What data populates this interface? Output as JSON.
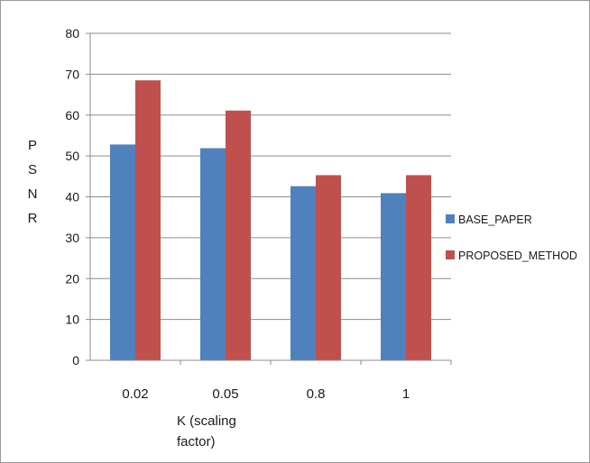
{
  "chart_data": {
    "type": "bar",
    "title": "",
    "xlabel": "K (scaling factor)",
    "xlabel_lines": [
      "K (scaling",
      "factor)"
    ],
    "ylabel": "PSNR",
    "ylabel_chars": [
      "P",
      "S",
      "N",
      "R"
    ],
    "ylim": [
      0,
      80
    ],
    "yticks": [
      0,
      10,
      20,
      30,
      40,
      50,
      60,
      70,
      80
    ],
    "grid": true,
    "legend_position": "right",
    "categories": [
      "0.02",
      "0.05",
      "0.8",
      "1"
    ],
    "series": [
      {
        "name": "BASE_PAPER",
        "color": "#4f81bd",
        "values": [
          52.8,
          51.9,
          42.6,
          40.9
        ]
      },
      {
        "name": "PROPOSED_METHOD",
        "color": "#c0504d",
        "values": [
          68.5,
          61.1,
          45.3,
          45.3
        ]
      }
    ]
  }
}
